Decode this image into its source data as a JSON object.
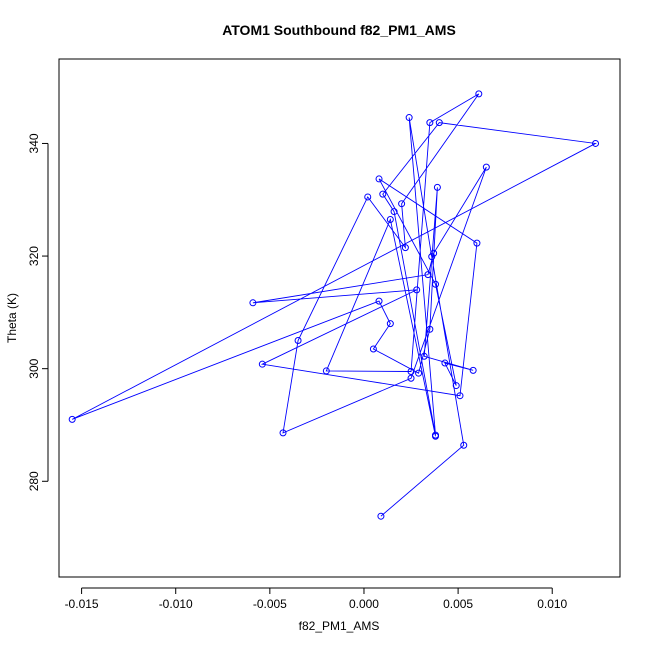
{
  "chart_data": {
    "type": "scatter",
    "title": "ATOM1 Southbound f82_PM1_AMS",
    "xlabel": "f82_PM1_AMS",
    "ylabel": "Theta (K)",
    "xlim": [
      -0.0162,
      0.0136
    ],
    "ylim": [
      263,
      355
    ],
    "x_ticks": [
      -0.015,
      -0.01,
      -0.005,
      0.0,
      0.005,
      0.01
    ],
    "x_tick_labels": [
      "-0.015",
      "-0.010",
      "-0.005",
      "0.000",
      "0.005",
      "0.010"
    ],
    "y_ticks": [
      280,
      300,
      320,
      340
    ],
    "y_tick_labels": [
      "280",
      "300",
      "320",
      "340"
    ],
    "grid": false,
    "color": "#0000ff",
    "points": [
      {
        "x": 0.0009,
        "y": 273.8
      },
      {
        "x": 0.0053,
        "y": 286.4
      },
      {
        "x": 0.0036,
        "y": 319.9
      },
      {
        "x": 0.0024,
        "y": 344.6
      },
      {
        "x": 0.0038,
        "y": 288.2
      },
      {
        "x": 0.0016,
        "y": 327.9
      },
      {
        "x": 0.001,
        "y": 331.0
      },
      {
        "x": 0.004,
        "y": 343.7
      },
      {
        "x": 0.0123,
        "y": 340.0
      },
      {
        "x": -0.0155,
        "y": 291.0
      },
      {
        "x": 0.0008,
        "y": 312.0
      },
      {
        "x": 0.0014,
        "y": 308.0
      },
      {
        "x": 0.0005,
        "y": 303.5
      },
      {
        "x": 0.0029,
        "y": 299.2
      },
      {
        "x": 0.0035,
        "y": 307.0
      },
      {
        "x": 0.0039,
        "y": 332.2
      },
      {
        "x": 0.0032,
        "y": 302.2
      },
      {
        "x": 0.0058,
        "y": 299.7
      },
      {
        "x": 0.0043,
        "y": 301.0
      },
      {
        "x": 0.0049,
        "y": 297.0
      },
      {
        "x": 0.0038,
        "y": 315.0
      },
      {
        "x": 0.0008,
        "y": 333.7
      },
      {
        "x": 0.006,
        "y": 322.3
      },
      {
        "x": 0.0051,
        "y": 295.2
      },
      {
        "x": -0.0054,
        "y": 300.8
      },
      {
        "x": 0.0028,
        "y": 314.0
      },
      {
        "x": -0.0059,
        "y": 311.7
      },
      {
        "x": 0.0034,
        "y": 316.7
      },
      {
        "x": 0.0037,
        "y": 320.5
      },
      {
        "x": 0.0065,
        "y": 335.8
      },
      {
        "x": 0.0025,
        "y": 298.3
      },
      {
        "x": -0.0043,
        "y": 288.6
      },
      {
        "x": -0.0035,
        "y": 305.0
      },
      {
        "x": 0.0002,
        "y": 330.5
      },
      {
        "x": 0.0022,
        "y": 321.5
      },
      {
        "x": 0.002,
        "y": 329.3
      },
      {
        "x": 0.0061,
        "y": 348.8
      },
      {
        "x": 0.0035,
        "y": 343.7
      },
      {
        "x": 0.0025,
        "y": 299.5
      },
      {
        "x": -0.002,
        "y": 299.6
      },
      {
        "x": 0.0014,
        "y": 326.5
      },
      {
        "x": 0.0038,
        "y": 288.0
      }
    ]
  }
}
